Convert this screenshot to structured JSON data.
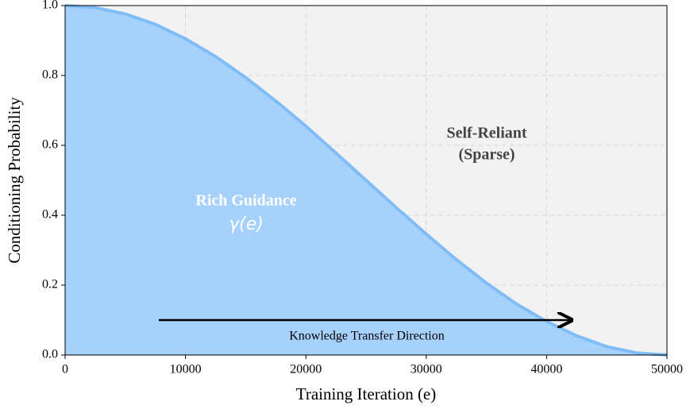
{
  "chart_data": {
    "type": "area",
    "x_label": "Training Iteration (e)",
    "y_label": "Conditioning Probability",
    "annotations": [
      "Rich Guidance",
      "γ(e)",
      "Self-Reliant",
      "(Sparse)",
      "Knowledge Transfer Direction"
    ],
    "x": [
      0,
      2500,
      5000,
      7500,
      10000,
      12500,
      15000,
      17500,
      20000,
      22500,
      25000,
      27500,
      30000,
      32500,
      35000,
      37500,
      40000,
      42500,
      45000,
      47500,
      50000
    ],
    "values": [
      1,
      0.994,
      0.976,
      0.946,
      0.905,
      0.854,
      0.794,
      0.727,
      0.655,
      0.578,
      0.5,
      0.422,
      0.346,
      0.273,
      0.206,
      0.146,
      0.096,
      0.055,
      0.024,
      0.006,
      0
    ],
    "color": "#80bdf7",
    "fill_color": "#a6d1fb",
    "xlim": [
      0,
      50000
    ],
    "xticks": [
      0,
      10000,
      20000,
      30000,
      40000,
      50000
    ],
    "ylim": [
      0,
      1
    ],
    "yticks": [
      {
        "value": 0,
        "label": "0.0"
      },
      {
        "value": 0.2,
        "label": "0.2"
      },
      {
        "value": 0.4,
        "label": "0.4"
      },
      {
        "value": 0.6,
        "label": "0.6"
      },
      {
        "value": 0.8,
        "label": "0.8"
      },
      {
        "value": 1,
        "label": "1.0"
      }
    ],
    "grid": true
  }
}
